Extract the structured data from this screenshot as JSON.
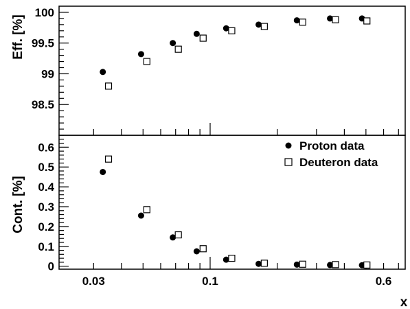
{
  "chart_data": [
    {
      "type": "scatter",
      "panel": "top",
      "xscale": "log",
      "xlim": [
        0.021,
        0.75
      ],
      "ylim": [
        98,
        100.1
      ],
      "ylabel": "Eff. [%]",
      "yticks": [
        98.5,
        99,
        99.5,
        100
      ],
      "ytick_labels": [
        "98.5",
        "99",
        "99.5",
        "100"
      ],
      "grid": false,
      "series": [
        {
          "name": "Proton data",
          "marker": "filled-circle",
          "x": [
            0.033,
            0.049,
            0.068,
            0.087,
            0.118,
            0.165,
            0.245,
            0.345,
            0.48
          ],
          "y": [
            99.03,
            99.32,
            99.5,
            99.65,
            99.74,
            99.8,
            99.87,
            99.9,
            99.9
          ]
        },
        {
          "name": "Deuteron data",
          "marker": "open-square",
          "x": [
            0.035,
            0.052,
            0.072,
            0.093,
            0.125,
            0.175,
            0.26,
            0.365,
            0.505
          ],
          "y": [
            98.8,
            99.2,
            99.4,
            99.58,
            99.7,
            99.77,
            99.84,
            99.88,
            99.86
          ]
        }
      ]
    },
    {
      "type": "scatter",
      "panel": "bottom",
      "xscale": "log",
      "xlim": [
        0.021,
        0.75
      ],
      "ylim": [
        -0.015,
        0.66
      ],
      "xlabel": "x",
      "ylabel": "Cont. [%]",
      "xticks": [
        0.03,
        0.1,
        0.6
      ],
      "xtick_labels": [
        "0.03",
        "0.1",
        "0.6"
      ],
      "yticks": [
        0,
        0.1,
        0.2,
        0.3,
        0.4,
        0.5,
        0.6
      ],
      "ytick_labels": [
        "0",
        "0.1",
        "0.2",
        "0.3",
        "0.4",
        "0.5",
        "0.6"
      ],
      "legend_position": "top-right",
      "grid": false,
      "series": [
        {
          "name": "Proton data",
          "marker": "filled-circle",
          "x": [
            0.033,
            0.049,
            0.068,
            0.087,
            0.118,
            0.165,
            0.245,
            0.345,
            0.48
          ],
          "y": [
            0.475,
            0.255,
            0.145,
            0.075,
            0.033,
            0.012,
            0.008,
            0.006,
            0.005
          ]
        },
        {
          "name": "Deuteron data",
          "marker": "open-square",
          "x": [
            0.035,
            0.052,
            0.072,
            0.093,
            0.125,
            0.175,
            0.26,
            0.365,
            0.505
          ],
          "y": [
            0.54,
            0.285,
            0.158,
            0.088,
            0.04,
            0.015,
            0.01,
            0.008,
            0.006
          ]
        }
      ]
    }
  ]
}
